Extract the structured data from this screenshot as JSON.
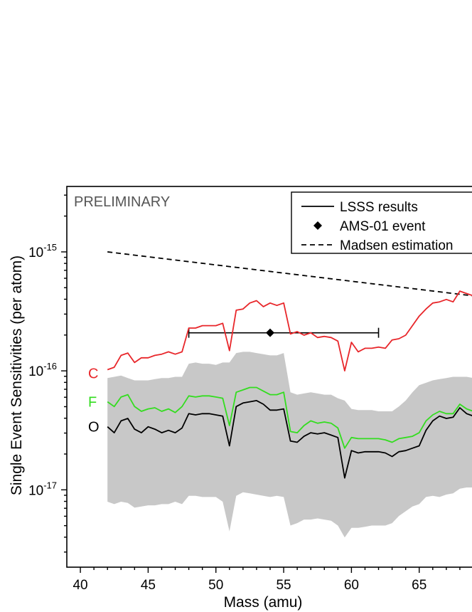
{
  "chart_data": {
    "type": "line",
    "watermark": "PRELIMINARY",
    "xlabel": "Mass (amu)",
    "ylabel": "Single Event Sensitivities (per atom)",
    "xlim": [
      39,
      69
    ],
    "ylim_log10": [
      -17.65,
      -14.45
    ],
    "y_scale": "log",
    "grid": false,
    "legend_position": "top-right",
    "x_ticks": [
      40,
      45,
      50,
      55,
      60,
      65
    ],
    "y_ticks": [
      {
        "base": "10",
        "exp": "-15",
        "value_log10": -15
      },
      {
        "base": "10",
        "exp": "-16",
        "value_log10": -16
      },
      {
        "base": "10",
        "exp": "-17",
        "value_log10": -17
      }
    ],
    "legend": [
      {
        "label": "LSSS results",
        "style": "solid-line"
      },
      {
        "label": "AMS-01 event",
        "style": "diamond"
      },
      {
        "label": "Madsen estimation",
        "style": "dashed-line"
      }
    ],
    "series_labels": [
      {
        "text": "C",
        "color": "#e8262a",
        "at_log10": -16.02
      },
      {
        "text": "F",
        "color": "#33dd1f",
        "at_log10": -16.26
      },
      {
        "text": "O",
        "color": "#000000",
        "at_log10": -16.47
      }
    ],
    "colors": {
      "C": "#e8262a",
      "F": "#33dd1f",
      "O": "#000000",
      "band": "#c8c8c8",
      "madsen": "#000000"
    },
    "madsen": {
      "x": [
        42,
        69
      ],
      "y_log10": [
        -15,
        -15.37
      ]
    },
    "ams01": {
      "x": 54,
      "xerr_low": 48,
      "xerr_high": 62,
      "y_log10": -15.68
    },
    "x": [
      42,
      42.5,
      43,
      43.5,
      44,
      44.5,
      45,
      45.5,
      46,
      46.5,
      47,
      47.5,
      48,
      48.5,
      49,
      49.5,
      50,
      50.5,
      51,
      51.5,
      52,
      52.5,
      53,
      53.5,
      54,
      54.5,
      55,
      55.5,
      56,
      56.5,
      57,
      57.5,
      58,
      58.5,
      59,
      59.5,
      60,
      60.5,
      61,
      61.5,
      62,
      62.5,
      63,
      63.5,
      64,
      64.5,
      65,
      65.5,
      66,
      66.5,
      67,
      67.5,
      68,
      68.5,
      69
    ],
    "series": [
      {
        "name": "C",
        "y_log10": [
          -15.99,
          -15.97,
          -15.87,
          -15.85,
          -15.93,
          -15.89,
          -15.89,
          -15.87,
          -15.86,
          -15.84,
          -15.86,
          -15.84,
          -15.64,
          -15.64,
          -15.62,
          -15.62,
          -15.62,
          -15.6,
          -15.83,
          -15.49,
          -15.48,
          -15.43,
          -15.41,
          -15.46,
          -15.43,
          -15.45,
          -15.43,
          -15.69,
          -15.67,
          -15.7,
          -15.68,
          -15.72,
          -15.71,
          -15.72,
          -15.75,
          -16.0,
          -15.76,
          -15.84,
          -15.81,
          -15.81,
          -15.8,
          -15.81,
          -15.74,
          -15.73,
          -15.7,
          -15.62,
          -15.54,
          -15.48,
          -15.43,
          -15.42,
          -15.4,
          -15.42,
          -15.33,
          -15.35,
          -15.37
        ]
      },
      {
        "name": "F",
        "y_log10": [
          -16.26,
          -16.3,
          -16.22,
          -16.2,
          -16.3,
          -16.34,
          -16.32,
          -16.31,
          -16.34,
          -16.32,
          -16.35,
          -16.3,
          -16.21,
          -16.22,
          -16.21,
          -16.21,
          -16.22,
          -16.23,
          -16.46,
          -16.18,
          -16.16,
          -16.14,
          -16.14,
          -16.17,
          -16.2,
          -16.2,
          -16.18,
          -16.51,
          -16.52,
          -16.46,
          -16.42,
          -16.44,
          -16.43,
          -16.44,
          -16.48,
          -16.65,
          -16.56,
          -16.57,
          -16.57,
          -16.57,
          -16.57,
          -16.58,
          -16.6,
          -16.57,
          -16.56,
          -16.55,
          -16.52,
          -16.42,
          -16.37,
          -16.34,
          -16.36,
          -16.36,
          -16.28,
          -16.32,
          -16.34
        ]
      },
      {
        "name": "O",
        "y_log10": [
          -16.47,
          -16.52,
          -16.42,
          -16.4,
          -16.49,
          -16.52,
          -16.47,
          -16.49,
          -16.52,
          -16.5,
          -16.52,
          -16.48,
          -16.36,
          -16.37,
          -16.36,
          -16.36,
          -16.37,
          -16.38,
          -16.63,
          -16.3,
          -16.27,
          -16.26,
          -16.25,
          -16.28,
          -16.33,
          -16.33,
          -16.32,
          -16.59,
          -16.6,
          -16.55,
          -16.52,
          -16.53,
          -16.52,
          -16.54,
          -16.56,
          -16.9,
          -16.67,
          -16.69,
          -16.68,
          -16.68,
          -16.68,
          -16.69,
          -16.72,
          -16.68,
          -16.67,
          -16.65,
          -16.63,
          -16.5,
          -16.42,
          -16.38,
          -16.4,
          -16.39,
          -16.31,
          -16.36,
          -16.38
        ]
      }
    ],
    "band": {
      "upper_log10": [
        -16.06,
        -16.05,
        -16.04,
        -16.06,
        -16.08,
        -16.08,
        -16.08,
        -16.07,
        -16.06,
        -16.06,
        -16.05,
        -16.05,
        -15.94,
        -15.93,
        -15.94,
        -15.94,
        -15.95,
        -15.93,
        -15.93,
        -15.85,
        -15.84,
        -15.84,
        -15.85,
        -15.86,
        -15.87,
        -15.87,
        -15.85,
        -16.18,
        -16.2,
        -16.19,
        -16.18,
        -16.19,
        -16.2,
        -16.2,
        -16.23,
        -16.25,
        -16.32,
        -16.33,
        -16.33,
        -16.33,
        -16.34,
        -16.34,
        -16.34,
        -16.3,
        -16.25,
        -16.18,
        -16.12,
        -16.1,
        -16.08,
        -16.07,
        -16.06,
        -16.05,
        -16.05,
        -16.05,
        -16.06
      ],
      "lower_log10": [
        -17.1,
        -17.12,
        -17.1,
        -17.11,
        -17.15,
        -17.14,
        -17.13,
        -17.13,
        -17.12,
        -17.12,
        -17.1,
        -17.12,
        -17.05,
        -17.05,
        -17.06,
        -17.06,
        -17.06,
        -17.1,
        -17.35,
        -17.05,
        -17.02,
        -17.03,
        -17.04,
        -17.05,
        -17.06,
        -17.05,
        -17.06,
        -17.3,
        -17.28,
        -17.25,
        -17.25,
        -17.24,
        -17.25,
        -17.26,
        -17.3,
        -17.4,
        -17.32,
        -17.32,
        -17.31,
        -17.3,
        -17.3,
        -17.3,
        -17.28,
        -17.22,
        -17.18,
        -17.14,
        -17.12,
        -17.06,
        -17.05,
        -17.06,
        -17.04,
        -17.03,
        -16.99,
        -16.98,
        -16.98
      ]
    }
  }
}
